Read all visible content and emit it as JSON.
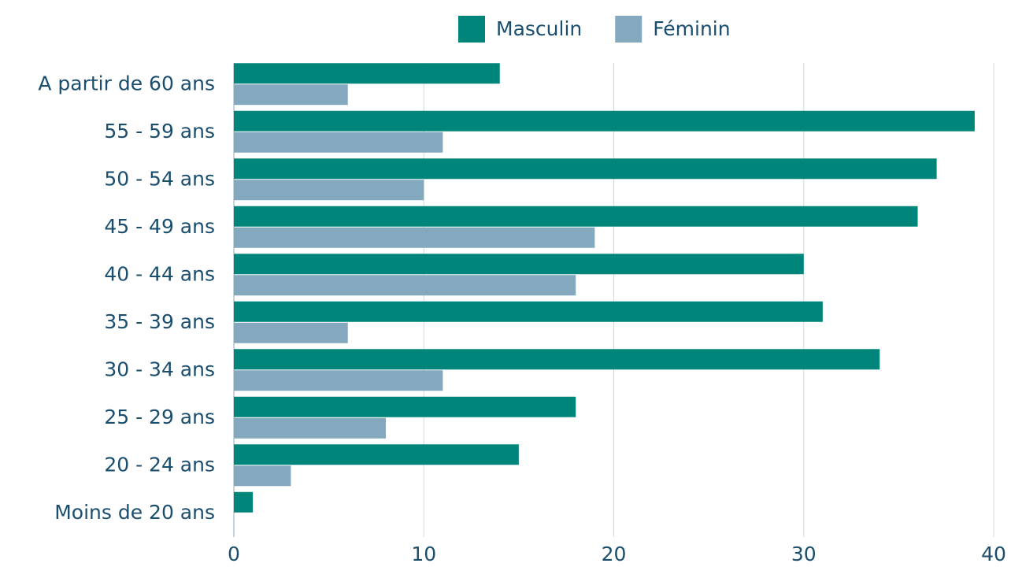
{
  "chart_data": {
    "type": "hbar",
    "categories": [
      "A partir de 60 ans",
      "55 - 59 ans",
      "50 - 54 ans",
      "45 - 49 ans",
      "40 - 44 ans",
      "35 - 39 ans",
      "30 - 34 ans",
      "25 - 29 ans",
      "20 - 24 ans",
      "Moins de 20 ans"
    ],
    "series": [
      {
        "name": "Masculin",
        "color": "#00857a",
        "values": [
          14,
          39,
          37,
          36,
          30,
          31,
          34,
          18,
          15,
          1
        ]
      },
      {
        "name": "Féminin",
        "color": "#84a9bf",
        "values": [
          6,
          11,
          10,
          19,
          18,
          6,
          11,
          8,
          3,
          0
        ]
      }
    ],
    "xlim": [
      0,
      40
    ],
    "xticks": [
      0,
      10,
      20,
      30,
      40
    ],
    "grid": true,
    "legend": "top"
  }
}
